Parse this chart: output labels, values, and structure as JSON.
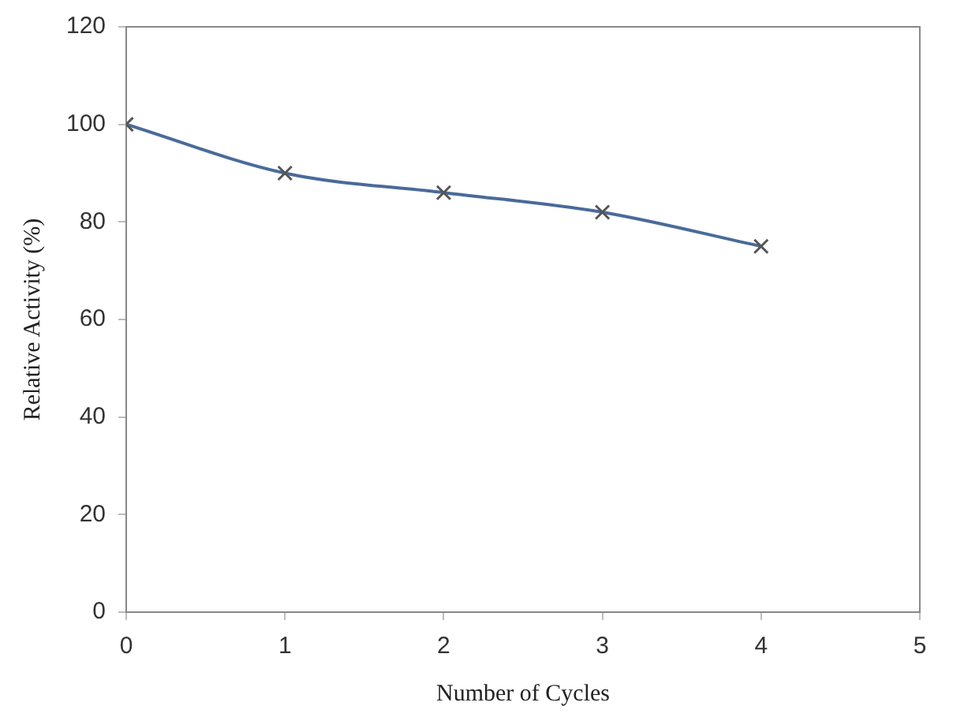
{
  "chart_data": {
    "type": "line",
    "xlabel": "Number of Cycles",
    "ylabel": "Relative Activity (%)",
    "x": [
      0,
      1,
      2,
      3,
      4
    ],
    "series": [
      {
        "color": "#4a6a9a",
        "values": [
          100,
          90,
          86,
          82,
          75
        ]
      }
    ],
    "xlim": [
      0,
      5
    ],
    "xticks": [
      0,
      1,
      2,
      3,
      4,
      5
    ],
    "ylim": [
      0,
      120
    ],
    "yticks": [
      0,
      20,
      40,
      60,
      80,
      100,
      120
    ],
    "grid": false,
    "legend": false,
    "marker": "cross",
    "line_style": "solid"
  }
}
